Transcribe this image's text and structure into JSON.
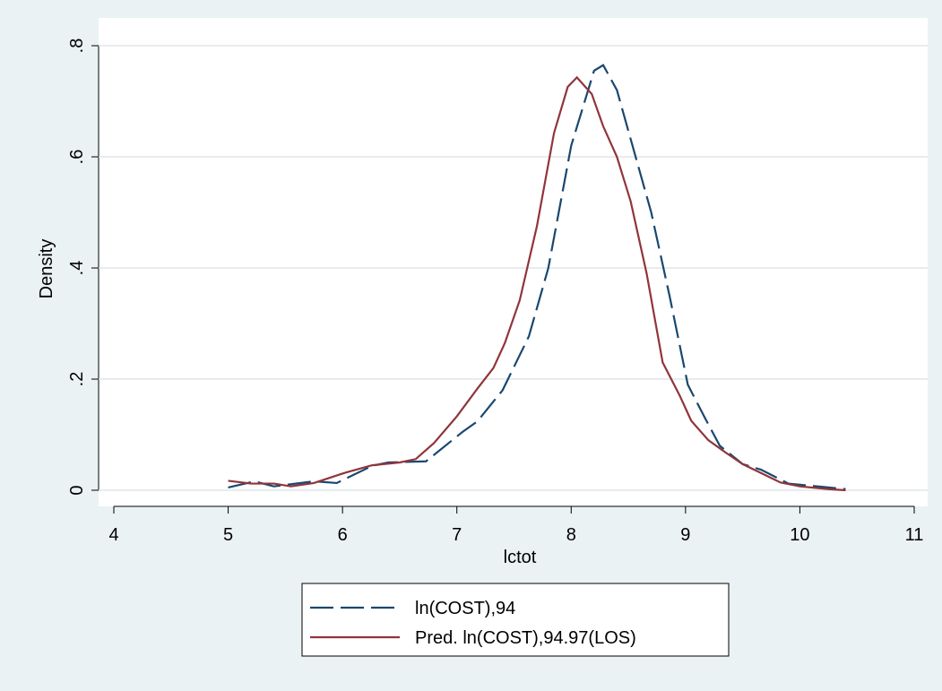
{
  "chart_data": {
    "type": "line",
    "x_label": "lctot",
    "y_label": "Density",
    "xlim": [
      4,
      11
    ],
    "xticks": [
      4,
      5,
      6,
      7,
      8,
      9,
      10,
      11
    ],
    "ylim": [
      0,
      0.8
    ],
    "yticks": [
      0,
      {
        "value": 0.2,
        "label": ".2"
      },
      {
        "value": 0.4,
        "label": ".4"
      },
      {
        "value": 0.6,
        "label": ".6"
      },
      {
        "value": 0.8,
        "label": ".8"
      }
    ],
    "grid": true,
    "legend": "bottom",
    "series": [
      {
        "name": "ln(COST),94",
        "color": "#1a476f",
        "dash": true,
        "x": [
          5.0,
          5.23,
          5.4,
          5.75,
          5.95,
          6.26,
          6.4,
          6.73,
          7.05,
          7.18,
          7.4,
          7.63,
          7.8,
          8.0,
          8.2,
          8.28,
          8.4,
          8.55,
          8.7,
          8.86,
          9.02,
          9.17,
          9.3,
          9.5,
          9.66,
          9.9,
          10.2,
          10.4
        ],
        "values": [
          0.005,
          0.016,
          0.007,
          0.016,
          0.013,
          0.044,
          0.05,
          0.052,
          0.105,
          0.124,
          0.18,
          0.277,
          0.4,
          0.62,
          0.755,
          0.765,
          0.72,
          0.61,
          0.5,
          0.35,
          0.19,
          0.13,
          0.08,
          0.047,
          0.037,
          0.012,
          0.006,
          0.002
        ]
      },
      {
        "name": "Pred. ln(COST),94.97(LOS)",
        "color": "#90353b",
        "dash": false,
        "x": [
          5.0,
          5.2,
          5.4,
          5.55,
          5.75,
          6.03,
          6.26,
          6.5,
          6.64,
          6.8,
          7.0,
          7.18,
          7.32,
          7.42,
          7.55,
          7.7,
          7.85,
          7.97,
          8.05,
          8.18,
          8.28,
          8.4,
          8.52,
          8.66,
          8.8,
          8.95,
          9.05,
          9.2,
          9.35,
          9.5,
          9.68,
          9.83,
          10.0,
          10.25,
          10.4
        ],
        "values": [
          0.017,
          0.012,
          0.012,
          0.007,
          0.013,
          0.032,
          0.045,
          0.05,
          0.056,
          0.085,
          0.133,
          0.183,
          0.22,
          0.265,
          0.342,
          0.475,
          0.643,
          0.726,
          0.743,
          0.713,
          0.655,
          0.6,
          0.52,
          0.39,
          0.23,
          0.17,
          0.125,
          0.09,
          0.068,
          0.047,
          0.029,
          0.014,
          0.007,
          0.002,
          0
        ]
      }
    ]
  }
}
